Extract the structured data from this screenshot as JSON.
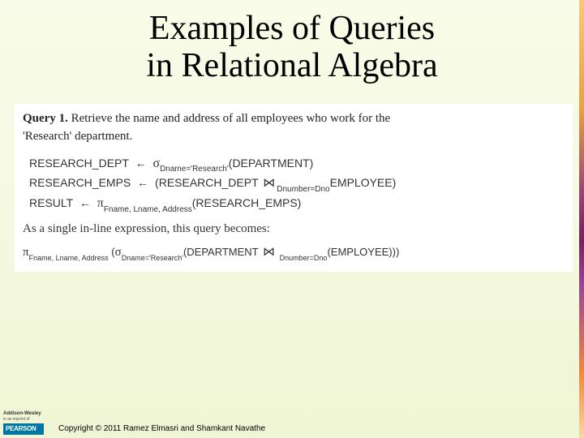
{
  "title_line1": "Examples of Queries",
  "title_line2": "in Relational Algebra",
  "query": {
    "label": "Query 1.",
    "description_part1": "Retrieve the name and address of all employees who work for the",
    "description_part2": "'Research' department."
  },
  "ra": {
    "line1": {
      "lhs": "RESEARCH_DEPT",
      "arrow": "←",
      "op": "σ",
      "sub": "Dname='Research'",
      "arg": "(DEPARTMENT)"
    },
    "line2": {
      "lhs": "RESEARCH_EMPS",
      "arrow": "←",
      "open": "(RESEARCH_DEPT",
      "join": "⋈",
      "joinsub": "Dnumber=Dno",
      "close": "EMPLOYEE)"
    },
    "line3": {
      "lhs": "RESULT",
      "arrow": "←",
      "op": "π",
      "sub": "Fname, Lname, Address",
      "arg": "(RESEARCH_EMPS)"
    }
  },
  "intertext": "As a single in-line expression, this query becomes:",
  "final": {
    "op1": "π",
    "sub1": "Fname, Lname, Address",
    "open1": "(",
    "op2": "σ",
    "sub2": "Dname='Research'",
    "open2": "(DEPARTMENT",
    "join": "⋈",
    "joinsub": "Dnumber=Dno",
    "close": "(EMPLOYEE)))"
  },
  "footer": {
    "logo_line1": "Addison-Wesley",
    "logo_line2": "is an imprint of",
    "pearson": "PEARSON",
    "copyright": "Copyright © 2011 Ramez Elmasri and Shamkant Navathe"
  },
  "colors": {
    "bg_top": "#f8fce8",
    "bg_bottom": "#f0f5d5",
    "content_bg": "#ffffff",
    "pearson_bg": "#0076a3",
    "text": "#000000"
  }
}
